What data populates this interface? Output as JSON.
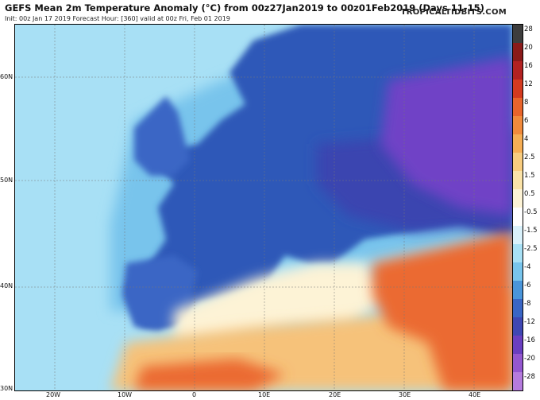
{
  "header": {
    "title": "GEFS Mean 2m Temperature Anomaly (°C) from 00z27Jan2019 to 00z01Feb2019 (Days 11-15)",
    "subtitle": "Init: 00z Jan 17 2019   Forecast Hour: [360]   valid at 00z Fri, Feb 01 2019",
    "brand": "TROPICALTIDBITS.COM"
  },
  "axes": {
    "lat_labels": [
      "60N",
      "50N",
      "40N",
      "30N"
    ],
    "lon_labels": [
      "20W",
      "10W",
      "0",
      "10E",
      "20E",
      "30E",
      "40E"
    ]
  },
  "colorbar": {
    "labels": [
      "28",
      "20",
      "16",
      "12",
      "8",
      "6",
      "4",
      "2.5",
      "1.5",
      "0.5",
      "-0.5",
      "-1.5",
      "-2.5",
      "-4",
      "-6",
      "-8",
      "-12",
      "-16",
      "-20",
      "-28"
    ],
    "colors": [
      "#3d3d3d",
      "#8a1a1a",
      "#b32222",
      "#d43a1f",
      "#e8642b",
      "#f18a3c",
      "#f6ae55",
      "#f8cc7f",
      "#fbe3a8",
      "#fdf3d6",
      "#ffffff",
      "#d9f1fb",
      "#a8e0f5",
      "#78c4ec",
      "#4a95da",
      "#3a66c5",
      "#3f47b3",
      "#6a3fc0",
      "#9457cf",
      "#b57bdd"
    ]
  },
  "map_colors": {
    "ocean_far": "#a8e0f5",
    "ocean_near": "#78c4ec",
    "cold_land": "#2f59b8",
    "very_cold": "#3a45b0",
    "extreme_cold": "#6f43c6",
    "warm": "#f6c27a",
    "hot": "#eb6a30",
    "neutral": "#fdf3d6"
  }
}
